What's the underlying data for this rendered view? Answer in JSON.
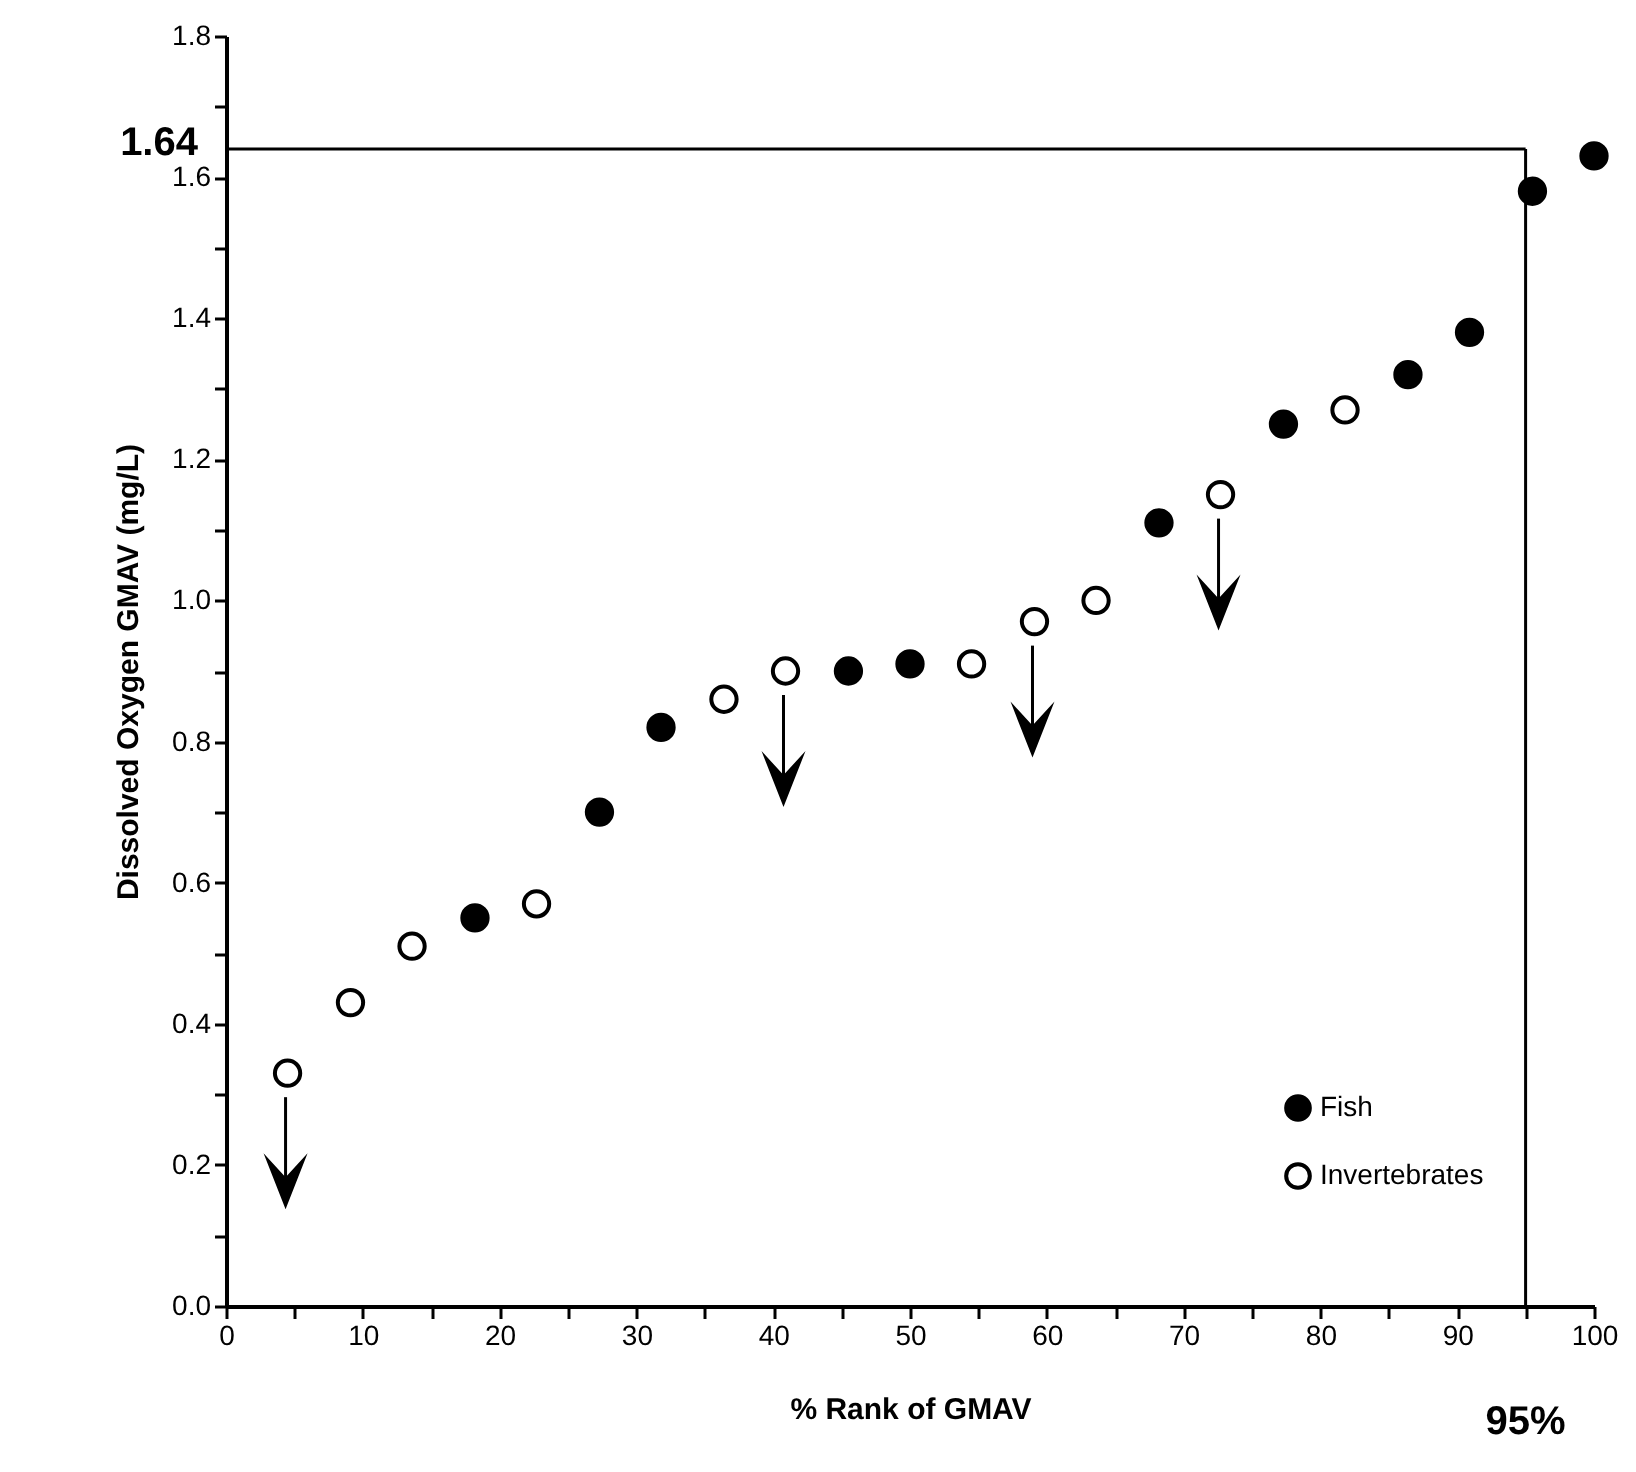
{
  "chart_data": {
    "type": "scatter",
    "xlabel": "% Rank of GMAV",
    "ylabel": "Dissolved Oxygen GMAV (mg/L)",
    "xlim": [
      0,
      100
    ],
    "ylim": [
      0,
      1.8
    ],
    "xticks": [
      0,
      {
        "value": 5,
        "label": null
      },
      10,
      {
        "value": 15,
        "label": null
      },
      20,
      {
        "value": 25,
        "label": null
      },
      30,
      {
        "value": 35,
        "label": null
      },
      40,
      {
        "value": 45,
        "label": null
      },
      50,
      {
        "value": 55,
        "label": null
      },
      60,
      {
        "value": 65,
        "label": null
      },
      70,
      {
        "value": 75,
        "label": null
      },
      80,
      {
        "value": 85,
        "label": null
      },
      90,
      {
        "value": 95,
        "label": null
      },
      100
    ],
    "yticks": [
      {
        "value": 0,
        "label": "0.0"
      },
      {
        "value": 0.1,
        "label": null
      },
      {
        "value": 0.2,
        "label": "0.2"
      },
      {
        "value": 0.3,
        "label": null
      },
      {
        "value": 0.4,
        "label": "0.4"
      },
      {
        "value": 0.5,
        "label": null
      },
      {
        "value": 0.6,
        "label": "0.6"
      },
      {
        "value": 0.7,
        "label": null
      },
      {
        "value": 0.8,
        "label": "0.8"
      },
      {
        "value": 0.9,
        "label": null
      },
      {
        "value": 1.0,
        "label": "1.0"
      },
      {
        "value": 1.1,
        "label": null
      },
      {
        "value": 1.2,
        "label": "1.2"
      },
      {
        "value": 1.3,
        "label": null
      },
      {
        "value": 1.4,
        "label": "1.4"
      },
      {
        "value": 1.5,
        "label": null
      },
      {
        "value": 1.6,
        "label": "1.6"
      },
      {
        "value": 1.7,
        "label": null
      },
      {
        "value": 1.8,
        "label": "1.8"
      }
    ],
    "grid": false,
    "legend": "bottom right",
    "marker": "circle",
    "series": [
      {
        "name": "Fish",
        "color": "#000000",
        "x": [
          18.2,
          27.3,
          31.8,
          45.5,
          50,
          68.2,
          77.3,
          86.4,
          90.9,
          95.5,
          100
        ],
        "values": [
          0.55,
          0.7,
          0.82,
          0.9,
          0.91,
          1.11,
          1.25,
          1.32,
          1.38,
          1.58,
          1.63
        ]
      },
      {
        "name": "Invertebrates",
        "color": "#ffffff",
        "x": [
          4.5,
          9.1,
          13.6,
          22.7,
          36.4,
          40.9,
          54.5,
          59.1,
          63.6,
          72.7,
          81.8
        ],
        "values": [
          0.33,
          0.43,
          0.51,
          0.57,
          0.86,
          0.9,
          0.91,
          0.97,
          1.0,
          1.15,
          1.27
        ]
      }
    ],
    "ref_lines": [
      {
        "axis": "y",
        "value": 1.64,
        "label": "1.64",
        "color": "#000000"
      },
      {
        "axis": "x",
        "value": 95,
        "label": "95%",
        "color": "#000000"
      }
    ]
  }
}
